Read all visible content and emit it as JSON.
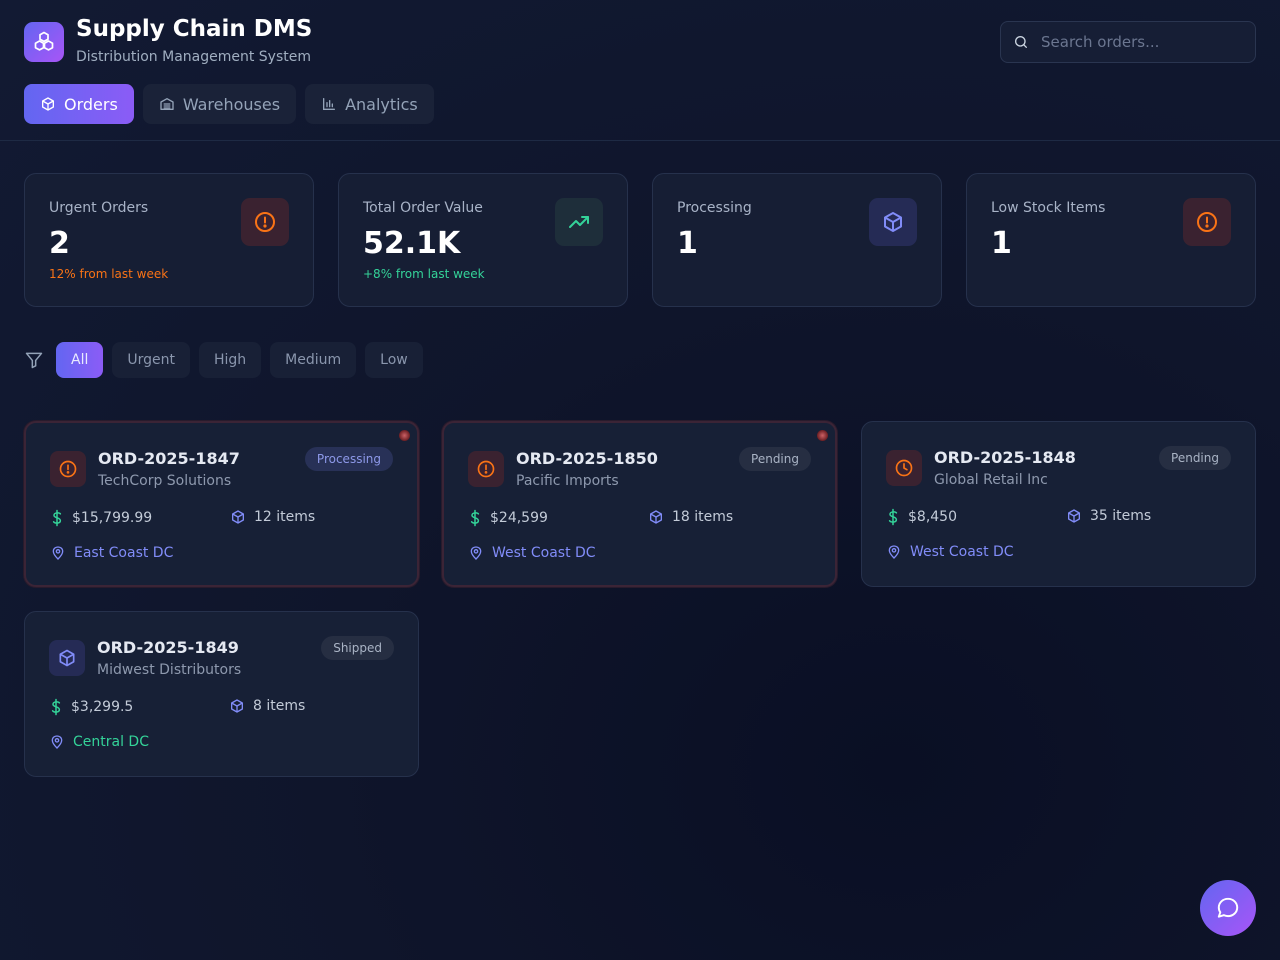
{
  "app": {
    "title": "Supply Chain DMS",
    "subtitle": "Distribution Management System",
    "logo_icon": "cubes-icon"
  },
  "search": {
    "placeholder": "Search orders..."
  },
  "nav": {
    "tabs": [
      {
        "label": "Orders",
        "icon": "box-icon",
        "active": true
      },
      {
        "label": "Warehouses",
        "icon": "warehouse-icon",
        "active": false
      },
      {
        "label": "Analytics",
        "icon": "bar-chart-icon",
        "active": false
      }
    ]
  },
  "stats": [
    {
      "label": "Urgent Orders",
      "value": "2",
      "trend": "12% from last week",
      "trend_color": "#f97316",
      "icon": "alert-circle-icon",
      "icon_color": "#f97316"
    },
    {
      "label": "Total Order Value",
      "value": "52.1K",
      "trend": "+8% from last week",
      "trend_color": "#34d399",
      "icon": "trending-up-icon",
      "icon_color": "#34d399"
    },
    {
      "label": "Processing",
      "value": "1",
      "trend": "",
      "icon": "box-icon",
      "icon_color": "#818cf8"
    },
    {
      "label": "Low Stock Items",
      "value": "1",
      "trend": "",
      "icon": "alert-circle-icon",
      "icon_color": "#f97316"
    }
  ],
  "filters": {
    "options": [
      "All",
      "Urgent",
      "High",
      "Medium",
      "Low"
    ],
    "selected": "All"
  },
  "orders": [
    {
      "id": "ORD-2025-1847",
      "customer": "TechCorp Solutions",
      "status": "Processing",
      "amount": "$15,799.99",
      "items": "12 items",
      "location": "East Coast DC",
      "priority": "urgent"
    },
    {
      "id": "ORD-2025-1850",
      "customer": "Pacific Imports",
      "status": "Pending",
      "amount": "$24,599",
      "items": "18 items",
      "location": "West Coast DC",
      "priority": "urgent"
    },
    {
      "id": "ORD-2025-1848",
      "customer": "Global Retail Inc",
      "status": "Pending",
      "amount": "$8,450",
      "items": "35 items",
      "location": "West Coast DC",
      "priority": "high"
    },
    {
      "id": "ORD-2025-1849",
      "customer": "Midwest Distributors",
      "status": "Shipped",
      "amount": "$3,299.5",
      "items": "8 items",
      "location": "Central DC",
      "priority": "low"
    }
  ],
  "colors": {
    "accent": "#6366f1",
    "accent_secondary": "#8b5cf6",
    "urgent": "#f97316",
    "money": "#34d399",
    "location_blue": "#818cf8",
    "location_green": "#34d399"
  },
  "chat": {
    "icon": "chat-bubble-icon"
  }
}
